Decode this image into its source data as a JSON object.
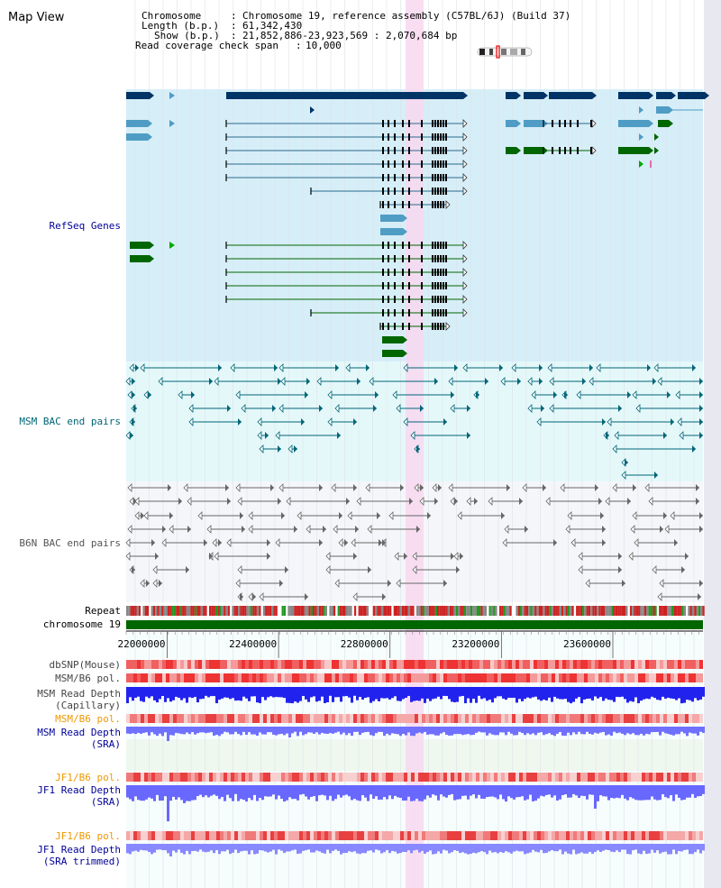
{
  "page": {
    "title": "Map View"
  },
  "header": {
    "chromosome_label": "Chromosome",
    "chromosome_value": "Chromosome 19, reference assembly (C57BL/6J) (Build 37)",
    "length_label": "Length (b.p.)",
    "length_value": "61,342,430",
    "show_label": "Show (b.p.)",
    "show_value": "21,852,886-23,923,569 : 2,070,684 bp",
    "span_label": "Read coverage check span",
    "span_value": "10,000"
  },
  "tracks": {
    "refseq": {
      "label": "RefSeq Genes",
      "color": "#000099"
    },
    "msm_bac": {
      "label": "MSM BAC end pairs",
      "color": "#006677"
    },
    "b6n_bac": {
      "label": "B6N BAC end pairs",
      "color": "#555555"
    },
    "repeat": {
      "label": "Repeat"
    },
    "chromosome": {
      "label": "chromosome 19"
    },
    "dbsnp": {
      "label": "dbSNP(Mouse)"
    },
    "msm_b6_pol": {
      "label": "MSM/B6 pol."
    },
    "msm_depth_cap": {
      "label1": "MSM Read Depth",
      "label2": "(Capillary)"
    },
    "msm_b6_pol2": {
      "label": "MSM/B6 pol."
    },
    "msm_depth_sra": {
      "label1": "MSM Read Depth",
      "label2": "(SRA)"
    },
    "jf1_b6_pol": {
      "label": "JF1/B6 pol."
    },
    "jf1_depth_sra": {
      "label1": "JF1 Read Depth",
      "label2": "(SRA)"
    },
    "jf1_b6_pol2": {
      "label": "JF1/B6 pol."
    },
    "jf1_depth_trim": {
      "label1": "JF1 Read Depth",
      "label2": "(SRA trimmed)"
    }
  },
  "axis": {
    "ticks": [
      "22000000",
      "22400000",
      "22800000",
      "23200000",
      "23600000"
    ],
    "tick_values": [
      22000000,
      22400000,
      22800000,
      23200000,
      23600000
    ],
    "start": 21852886,
    "end": 23923569
  },
  "colors": {
    "refseq_bg": "#d6eef8",
    "msm_bg": "#e4f8fa",
    "b6n_bg": "#f4f6f9",
    "highlight": "#f8d8f0",
    "gene_dark": "#003366",
    "gene_light": "#4f9cc4",
    "gene_green": "#006600",
    "chrom_green": "#006600",
    "depth_blue": "#0000ee",
    "depth_light": "#7070ff",
    "pol_red": "#ee3333",
    "orange_label": "#ee9900",
    "blue_label": "#000099"
  }
}
